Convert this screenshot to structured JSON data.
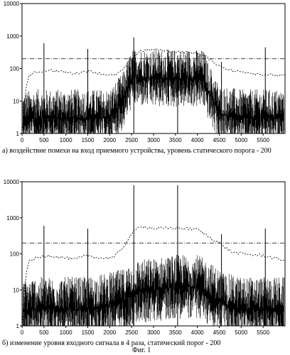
{
  "figure_label": "Фиг. 1",
  "chart_data": [
    {
      "type": "line",
      "caption": "а) воздействие помехи на вход приемного устройства, уровень статического порога - 200",
      "y_scale": "log",
      "ylim": [
        1,
        10000
      ],
      "xlim": [
        0,
        6000
      ],
      "y_ticks": [
        "1",
        "10",
        "100",
        "1000",
        "10000"
      ],
      "x_ticks": [
        "0",
        "500",
        "1000",
        "1500",
        "2000",
        "2500",
        "3000",
        "3500",
        "4000",
        "4500",
        "5000",
        "5500"
      ],
      "grid": false,
      "threshold": 200,
      "spikes": [
        {
          "x": 500,
          "y": 600
        },
        {
          "x": 1500,
          "y": 400
        },
        {
          "x": 2550,
          "y": 900
        },
        {
          "x": 3550,
          "y": 250
        },
        {
          "x": 4550,
          "y": 160
        },
        {
          "x": 5550,
          "y": 450
        }
      ],
      "series": [
        {
          "style": "noise",
          "points": [
            [
              0,
              5
            ],
            [
              300,
              6
            ],
            [
              1000,
              6
            ],
            [
              2000,
              6
            ],
            [
              2300,
              20
            ],
            [
              2450,
              70
            ],
            [
              2550,
              110
            ],
            [
              3000,
              100
            ],
            [
              3500,
              100
            ],
            [
              4000,
              100
            ],
            [
              4150,
              95
            ],
            [
              4250,
              40
            ],
            [
              4500,
              8
            ],
            [
              5000,
              6
            ],
            [
              6000,
              6
            ]
          ]
        },
        {
          "style": "dashed",
          "points": [
            [
              0,
              1
            ],
            [
              80,
              20
            ],
            [
              150,
              60
            ],
            [
              300,
              75
            ],
            [
              600,
              90
            ],
            [
              900,
              80
            ],
            [
              1200,
              70
            ],
            [
              1500,
              85
            ],
            [
              1800,
              70
            ],
            [
              2100,
              60
            ],
            [
              2300,
              90
            ],
            [
              2500,
              200
            ],
            [
              2700,
              350
            ],
            [
              3000,
              380
            ],
            [
              3500,
              330
            ],
            [
              4000,
              300
            ],
            [
              4200,
              230
            ],
            [
              4500,
              120
            ],
            [
              4800,
              85
            ],
            [
              5200,
              75
            ],
            [
              5500,
              65
            ],
            [
              6000,
              60
            ]
          ]
        }
      ]
    },
    {
      "type": "line",
      "caption": "б) изменение уровня входного сигнала в 4 раза, статический порог - 200",
      "y_scale": "log",
      "ylim": [
        1,
        10000
      ],
      "xlim": [
        0,
        6000
      ],
      "y_ticks": [
        "1",
        "10",
        "100",
        "1000",
        "10000"
      ],
      "x_ticks": [
        "0",
        "500",
        "1000",
        "1500",
        "2000",
        "2500",
        "3000",
        "3500",
        "4000",
        "4500",
        "5000",
        "5500"
      ],
      "grid": false,
      "threshold": 200,
      "spikes": [
        {
          "x": 500,
          "y": 600
        },
        {
          "x": 1500,
          "y": 500
        },
        {
          "x": 2550,
          "y": 8000
        },
        {
          "x": 3550,
          "y": 8000
        },
        {
          "x": 4550,
          "y": 350
        },
        {
          "x": 5550,
          "y": 500
        }
      ],
      "series": [
        {
          "style": "noise",
          "points": [
            [
              0,
              5
            ],
            [
              300,
              6
            ],
            [
              1000,
              6
            ],
            [
              1500,
              6
            ],
            [
              2000,
              8
            ],
            [
              2300,
              10
            ],
            [
              2600,
              18
            ],
            [
              3000,
              20
            ],
            [
              3500,
              25
            ],
            [
              4000,
              25
            ],
            [
              4300,
              15
            ],
            [
              4600,
              8
            ],
            [
              5000,
              6
            ],
            [
              6000,
              6
            ]
          ]
        },
        {
          "style": "dashed",
          "points": [
            [
              0,
              1
            ],
            [
              80,
              25
            ],
            [
              150,
              60
            ],
            [
              300,
              75
            ],
            [
              600,
              90
            ],
            [
              900,
              80
            ],
            [
              1200,
              70
            ],
            [
              1500,
              90
            ],
            [
              1800,
              75
            ],
            [
              2100,
              80
            ],
            [
              2300,
              150
            ],
            [
              2500,
              350
            ],
            [
              2700,
              600
            ],
            [
              3000,
              500
            ],
            [
              3500,
              520
            ],
            [
              4000,
              480
            ],
            [
              4200,
              330
            ],
            [
              4500,
              200
            ],
            [
              4800,
              110
            ],
            [
              5200,
              95
            ],
            [
              5500,
              90
            ],
            [
              6000,
              65
            ]
          ]
        }
      ]
    }
  ]
}
